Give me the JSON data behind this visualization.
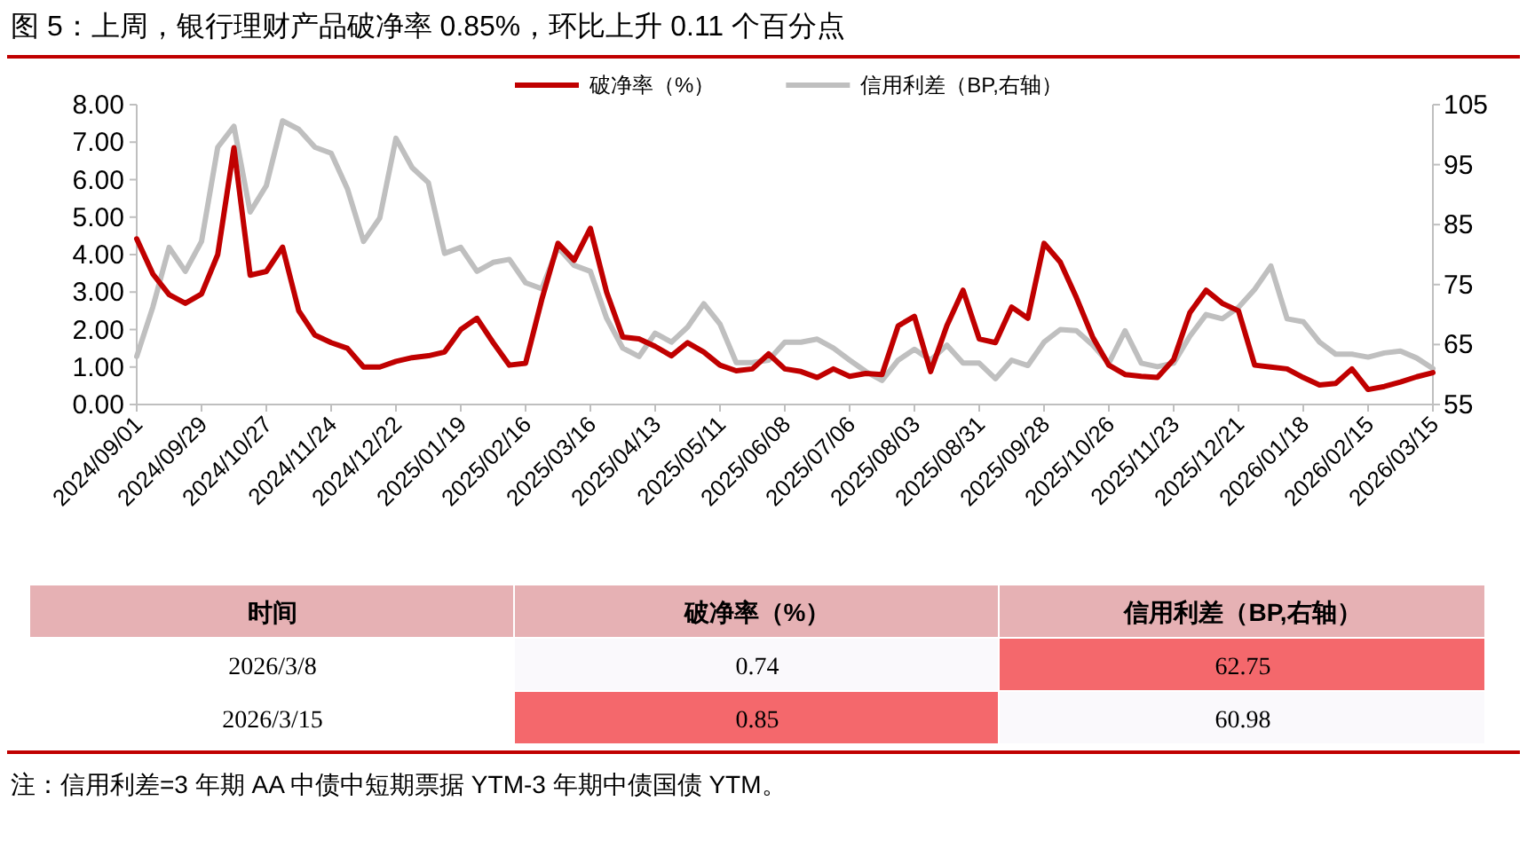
{
  "chart_data": [
    {
      "type": "line",
      "title": "图 5：上周，银行理财产品破净率 0.85%，环比上升 0.11 个百分点",
      "x": [
        "2024-09-01",
        "2024-09-08",
        "2024-09-15",
        "2024-09-22",
        "2024-09-29",
        "2024-10-06",
        "2024-10-13",
        "2024-10-20",
        "2024-10-27",
        "2024-11-03",
        "2024-11-10",
        "2024-11-17",
        "2024-11-24",
        "2024-12-01",
        "2024-12-08",
        "2024-12-15",
        "2024-12-22",
        "2024-12-29",
        "2025-01-05",
        "2025-01-12",
        "2025-01-19",
        "2025-01-26",
        "2025-02-02",
        "2025-02-09",
        "2025-02-16",
        "2025-02-23",
        "2025-03-02",
        "2025-03-09",
        "2025-03-16",
        "2025-03-23",
        "2025-03-30",
        "2025-04-06",
        "2025-04-13",
        "2025-04-20",
        "2025-04-27",
        "2025-05-04",
        "2025-05-11",
        "2025-05-18",
        "2025-05-25",
        "2025-06-01",
        "2025-06-08",
        "2025-06-15",
        "2025-06-22",
        "2025-06-29",
        "2025-07-06",
        "2025-07-13",
        "2025-07-20",
        "2025-07-27",
        "2025-08-03",
        "2025-08-10",
        "2025-08-17",
        "2025-08-24",
        "2025-08-31",
        "2025-09-07",
        "2025-09-14",
        "2025-09-21",
        "2025-09-28",
        "2025-10-05",
        "2025-10-12",
        "2025-10-19",
        "2025-10-26",
        "2025-11-02",
        "2025-11-09",
        "2025-11-16",
        "2025-11-23",
        "2025-11-30",
        "2025-12-07",
        "2025-12-14",
        "2025-12-21",
        "2025-12-28",
        "2026-01-04",
        "2026-01-11",
        "2026-01-18",
        "2026-01-25",
        "2026-02-01",
        "2026-02-08",
        "2026-02-15",
        "2026-02-22",
        "2026-03-01",
        "2026-03-08",
        "2026-03-15"
      ],
      "series": [
        {
          "name": "破净率（%）",
          "color": "#c00000",
          "values": [
            4.42,
            3.48,
            2.93,
            2.7,
            2.95,
            4.0,
            6.85,
            3.45,
            3.55,
            4.2,
            2.5,
            1.85,
            1.65,
            1.5,
            1.0,
            1.0,
            1.15,
            1.25,
            1.3,
            1.4,
            2.0,
            2.3,
            1.65,
            1.05,
            1.1,
            2.8,
            4.3,
            3.85,
            4.7,
            3.0,
            1.8,
            1.75,
            1.55,
            1.3,
            1.65,
            1.4,
            1.05,
            0.9,
            0.95,
            1.35,
            0.95,
            0.88,
            0.72,
            0.95,
            0.75,
            0.83,
            0.8,
            2.1,
            2.35,
            0.88,
            2.1,
            3.05,
            1.75,
            1.65,
            2.6,
            2.3,
            4.3,
            3.8,
            2.85,
            1.8,
            1.05,
            0.8,
            0.75,
            0.72,
            1.2,
            2.45,
            3.05,
            2.7,
            2.5,
            1.05,
            1.0,
            0.95,
            0.72,
            0.52,
            0.56,
            0.95,
            0.4,
            0.48,
            0.6,
            0.74,
            0.85
          ]
        },
        {
          "name": "信用利差（BP,右轴）",
          "color": "#bfbfbf",
          "axis": "y2",
          "values": [
            63,
            71.3,
            81.2,
            77.2,
            82.2,
            97.9,
            101.4,
            87.1,
            91.5,
            102.3,
            100.9,
            97.9,
            96.9,
            91,
            82.2,
            86.1,
            99.4,
            94.5,
            92,
            80.2,
            81.2,
            77.2,
            78.7,
            79.2,
            75.3,
            74.3,
            81.2,
            78.2,
            77.2,
            69.4,
            64.4,
            63,
            66.9,
            65.4,
            67.9,
            71.8,
            68.4,
            62,
            62,
            62.4,
            65.4,
            65.4,
            65.9,
            64.4,
            62.4,
            60.5,
            59,
            62.4,
            64.2,
            62.4,
            64.9,
            61.9,
            61.9,
            59.3,
            62.4,
            61.5,
            65.4,
            67.5,
            67.3,
            64.9,
            61.9,
            67.3,
            61.9,
            61.3,
            61.9,
            66.4,
            70,
            69.3,
            71.2,
            74.2,
            78.1,
            69.3,
            68.8,
            65.4,
            63.4,
            63.4,
            62.9,
            63.6,
            63.9,
            62.75,
            60.98
          ]
        }
      ],
      "xlim": [
        "2024-09-01",
        "2026-03-15"
      ],
      "xticks": [
        {
          "value": "2024-09-01",
          "label": "2024/09/01"
        },
        {
          "value": "2024-09-29",
          "label": "2024/09/29"
        },
        {
          "value": "2024-10-27",
          "label": "2024/10/27"
        },
        {
          "value": "2024-11-24",
          "label": "2024/11/24"
        },
        {
          "value": "2024-12-22",
          "label": "2024/12/22"
        },
        {
          "value": "2025-01-19",
          "label": "2025/01/19"
        },
        {
          "value": "2025-02-16",
          "label": "2025/02/16"
        },
        {
          "value": "2025-03-16",
          "label": "2025/03/16"
        },
        {
          "value": "2025-04-13",
          "label": "2025/04/13"
        },
        {
          "value": "2025-05-11",
          "label": "2025/05/11"
        },
        {
          "value": "2025-06-08",
          "label": "2025/06/08"
        },
        {
          "value": "2025-07-06",
          "label": "2025/07/06"
        },
        {
          "value": "2025-08-03",
          "label": "2025/08/03"
        },
        {
          "value": "2025-08-31",
          "label": "2025/08/31"
        },
        {
          "value": "2025-09-28",
          "label": "2025/09/28"
        },
        {
          "value": "2025-10-26",
          "label": "2025/10/26"
        },
        {
          "value": "2025-11-23",
          "label": "2025/11/23"
        },
        {
          "value": "2025-12-21",
          "label": "2025/12/21"
        },
        {
          "value": "2026-01-18",
          "label": "2026/01/18"
        },
        {
          "value": "2026-02-15",
          "label": "2026/02/15"
        },
        {
          "value": "2026-03-15",
          "label": "2026/03/15"
        }
      ],
      "ylim": [
        0,
        8
      ],
      "yticks": [
        {
          "value": 0,
          "label": "0.00"
        },
        {
          "value": 1,
          "label": "1.00"
        },
        {
          "value": 2,
          "label": "2.00"
        },
        {
          "value": 3,
          "label": "3.00"
        },
        {
          "value": 4,
          "label": "4.00"
        },
        {
          "value": 5,
          "label": "5.00"
        },
        {
          "value": 6,
          "label": "6.00"
        },
        {
          "value": 7,
          "label": "7.00"
        },
        {
          "value": 8,
          "label": "8.00"
        }
      ],
      "y2lim": [
        55,
        105
      ],
      "y2ticks": [
        55,
        65,
        75,
        85,
        95,
        105
      ],
      "legend": "top",
      "line_style": "solid",
      "annotations": [
        "注：信用利差=3 年期 AA 中债中短期票据 YTM-3 年期中债国债 YTM。"
      ]
    },
    {
      "type": "other",
      "annotations": [
        "时间",
        "破净率（%）",
        "信用利差（BP,右轴）",
        "2026/3/8",
        "0.74",
        "62.75",
        "2026/3/15",
        "0.85",
        "60.98"
      ],
      "colors": [
        "#e6b1b4",
        "#e6b1b4",
        "#e6b1b4",
        "#ffffff",
        "#faf9fc",
        "#f4686c",
        "#ffffff",
        "#f4686c",
        "#faf9fc"
      ]
    }
  ]
}
